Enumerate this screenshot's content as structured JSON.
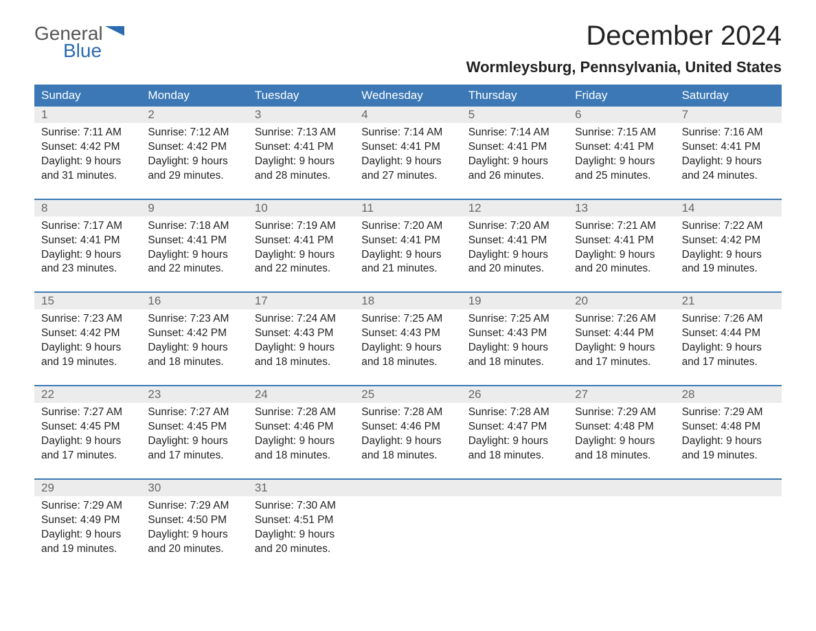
{
  "logo": {
    "general": "General",
    "blue": "Blue"
  },
  "title": "December 2024",
  "location": "Wormleysburg, Pennsylvania, United States",
  "colors": {
    "header_bg": "#3b78b5",
    "header_text": "#ffffff",
    "daynum_bg": "#ececec",
    "daynum_text": "#666666",
    "body_text": "#222222",
    "logo_general": "#555555",
    "logo_blue": "#2b6cb0"
  },
  "day_headers": [
    "Sunday",
    "Monday",
    "Tuesday",
    "Wednesday",
    "Thursday",
    "Friday",
    "Saturday"
  ],
  "weeks": [
    [
      {
        "n": "1",
        "sr": "Sunrise: 7:11 AM",
        "ss": "Sunset: 4:42 PM",
        "d1": "Daylight: 9 hours",
        "d2": "and 31 minutes."
      },
      {
        "n": "2",
        "sr": "Sunrise: 7:12 AM",
        "ss": "Sunset: 4:42 PM",
        "d1": "Daylight: 9 hours",
        "d2": "and 29 minutes."
      },
      {
        "n": "3",
        "sr": "Sunrise: 7:13 AM",
        "ss": "Sunset: 4:41 PM",
        "d1": "Daylight: 9 hours",
        "d2": "and 28 minutes."
      },
      {
        "n": "4",
        "sr": "Sunrise: 7:14 AM",
        "ss": "Sunset: 4:41 PM",
        "d1": "Daylight: 9 hours",
        "d2": "and 27 minutes."
      },
      {
        "n": "5",
        "sr": "Sunrise: 7:14 AM",
        "ss": "Sunset: 4:41 PM",
        "d1": "Daylight: 9 hours",
        "d2": "and 26 minutes."
      },
      {
        "n": "6",
        "sr": "Sunrise: 7:15 AM",
        "ss": "Sunset: 4:41 PM",
        "d1": "Daylight: 9 hours",
        "d2": "and 25 minutes."
      },
      {
        "n": "7",
        "sr": "Sunrise: 7:16 AM",
        "ss": "Sunset: 4:41 PM",
        "d1": "Daylight: 9 hours",
        "d2": "and 24 minutes."
      }
    ],
    [
      {
        "n": "8",
        "sr": "Sunrise: 7:17 AM",
        "ss": "Sunset: 4:41 PM",
        "d1": "Daylight: 9 hours",
        "d2": "and 23 minutes."
      },
      {
        "n": "9",
        "sr": "Sunrise: 7:18 AM",
        "ss": "Sunset: 4:41 PM",
        "d1": "Daylight: 9 hours",
        "d2": "and 22 minutes."
      },
      {
        "n": "10",
        "sr": "Sunrise: 7:19 AM",
        "ss": "Sunset: 4:41 PM",
        "d1": "Daylight: 9 hours",
        "d2": "and 22 minutes."
      },
      {
        "n": "11",
        "sr": "Sunrise: 7:20 AM",
        "ss": "Sunset: 4:41 PM",
        "d1": "Daylight: 9 hours",
        "d2": "and 21 minutes."
      },
      {
        "n": "12",
        "sr": "Sunrise: 7:20 AM",
        "ss": "Sunset: 4:41 PM",
        "d1": "Daylight: 9 hours",
        "d2": "and 20 minutes."
      },
      {
        "n": "13",
        "sr": "Sunrise: 7:21 AM",
        "ss": "Sunset: 4:41 PM",
        "d1": "Daylight: 9 hours",
        "d2": "and 20 minutes."
      },
      {
        "n": "14",
        "sr": "Sunrise: 7:22 AM",
        "ss": "Sunset: 4:42 PM",
        "d1": "Daylight: 9 hours",
        "d2": "and 19 minutes."
      }
    ],
    [
      {
        "n": "15",
        "sr": "Sunrise: 7:23 AM",
        "ss": "Sunset: 4:42 PM",
        "d1": "Daylight: 9 hours",
        "d2": "and 19 minutes."
      },
      {
        "n": "16",
        "sr": "Sunrise: 7:23 AM",
        "ss": "Sunset: 4:42 PM",
        "d1": "Daylight: 9 hours",
        "d2": "and 18 minutes."
      },
      {
        "n": "17",
        "sr": "Sunrise: 7:24 AM",
        "ss": "Sunset: 4:43 PM",
        "d1": "Daylight: 9 hours",
        "d2": "and 18 minutes."
      },
      {
        "n": "18",
        "sr": "Sunrise: 7:25 AM",
        "ss": "Sunset: 4:43 PM",
        "d1": "Daylight: 9 hours",
        "d2": "and 18 minutes."
      },
      {
        "n": "19",
        "sr": "Sunrise: 7:25 AM",
        "ss": "Sunset: 4:43 PM",
        "d1": "Daylight: 9 hours",
        "d2": "and 18 minutes."
      },
      {
        "n": "20",
        "sr": "Sunrise: 7:26 AM",
        "ss": "Sunset: 4:44 PM",
        "d1": "Daylight: 9 hours",
        "d2": "and 17 minutes."
      },
      {
        "n": "21",
        "sr": "Sunrise: 7:26 AM",
        "ss": "Sunset: 4:44 PM",
        "d1": "Daylight: 9 hours",
        "d2": "and 17 minutes."
      }
    ],
    [
      {
        "n": "22",
        "sr": "Sunrise: 7:27 AM",
        "ss": "Sunset: 4:45 PM",
        "d1": "Daylight: 9 hours",
        "d2": "and 17 minutes."
      },
      {
        "n": "23",
        "sr": "Sunrise: 7:27 AM",
        "ss": "Sunset: 4:45 PM",
        "d1": "Daylight: 9 hours",
        "d2": "and 17 minutes."
      },
      {
        "n": "24",
        "sr": "Sunrise: 7:28 AM",
        "ss": "Sunset: 4:46 PM",
        "d1": "Daylight: 9 hours",
        "d2": "and 18 minutes."
      },
      {
        "n": "25",
        "sr": "Sunrise: 7:28 AM",
        "ss": "Sunset: 4:46 PM",
        "d1": "Daylight: 9 hours",
        "d2": "and 18 minutes."
      },
      {
        "n": "26",
        "sr": "Sunrise: 7:28 AM",
        "ss": "Sunset: 4:47 PM",
        "d1": "Daylight: 9 hours",
        "d2": "and 18 minutes."
      },
      {
        "n": "27",
        "sr": "Sunrise: 7:29 AM",
        "ss": "Sunset: 4:48 PM",
        "d1": "Daylight: 9 hours",
        "d2": "and 18 minutes."
      },
      {
        "n": "28",
        "sr": "Sunrise: 7:29 AM",
        "ss": "Sunset: 4:48 PM",
        "d1": "Daylight: 9 hours",
        "d2": "and 19 minutes."
      }
    ],
    [
      {
        "n": "29",
        "sr": "Sunrise: 7:29 AM",
        "ss": "Sunset: 4:49 PM",
        "d1": "Daylight: 9 hours",
        "d2": "and 19 minutes."
      },
      {
        "n": "30",
        "sr": "Sunrise: 7:29 AM",
        "ss": "Sunset: 4:50 PM",
        "d1": "Daylight: 9 hours",
        "d2": "and 20 minutes."
      },
      {
        "n": "31",
        "sr": "Sunrise: 7:30 AM",
        "ss": "Sunset: 4:51 PM",
        "d1": "Daylight: 9 hours",
        "d2": "and 20 minutes."
      },
      null,
      null,
      null,
      null
    ]
  ]
}
